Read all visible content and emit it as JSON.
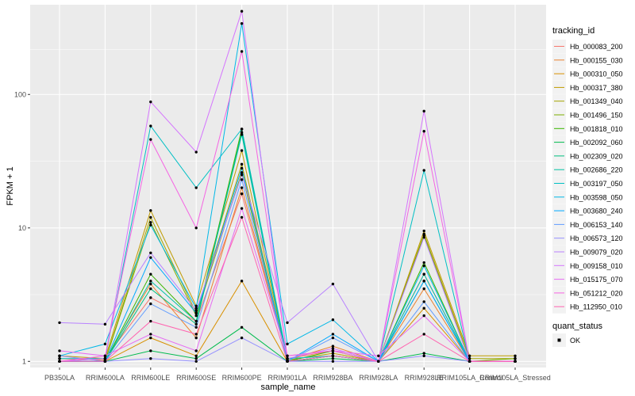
{
  "chart_data": {
    "type": "line",
    "xlabel": "sample_name",
    "ylabel": "FPKM + 1",
    "y_scale": "log10",
    "ylim": [
      0.9,
      470
    ],
    "y_ticks": [
      {
        "value": 1,
        "label": "1"
      },
      {
        "value": 10,
        "label": "10"
      },
      {
        "value": 100,
        "label": "100"
      }
    ],
    "categories": [
      "PB350LA",
      "RRIM600LA",
      "RRIM600LE",
      "RRIM600SE",
      "RRIM600PE",
      "RRIM901LA",
      "RRIM928BA",
      "RRIM928LA",
      "RRIM928LE",
      "RRIM105LA_Control",
      "RRIM105LA_Stressed"
    ],
    "grid": true,
    "background": "#EBEBEB",
    "legend": {
      "title": "tracking_id",
      "placement": "right",
      "shape_title": "quant_status",
      "shape_entries": [
        "OK"
      ]
    },
    "series": [
      {
        "name": "Hb_000083_200",
        "color": "#F8766D",
        "values": [
          1.0,
          1.05,
          3.0,
          2.0,
          18,
          1.05,
          1.2,
          1.0,
          4.5,
          1.0,
          1.0
        ]
      },
      {
        "name": "Hb_000155_030",
        "color": "#EA8331",
        "values": [
          1.05,
          1.02,
          3.8,
          1.5,
          20,
          1.02,
          1.3,
          1.0,
          3.5,
          1.0,
          1.0
        ]
      },
      {
        "name": "Hb_000310_050",
        "color": "#D89000",
        "values": [
          1.0,
          1.0,
          1.5,
          1.1,
          4.0,
          1.0,
          1.1,
          1.0,
          2.5,
          1.0,
          1.0
        ]
      },
      {
        "name": "Hb_000317_380",
        "color": "#C09B00",
        "values": [
          1.1,
          1.05,
          13.5,
          2.6,
          38,
          1.02,
          1.15,
          1.0,
          9.5,
          1.1,
          1.1
        ]
      },
      {
        "name": "Hb_001349_040",
        "color": "#A3A500",
        "values": [
          1.0,
          1.0,
          12.0,
          2.3,
          30,
          1.0,
          1.1,
          1.0,
          9.0,
          1.05,
          1.05
        ]
      },
      {
        "name": "Hb_001496_150",
        "color": "#7CAE00",
        "values": [
          1.0,
          1.0,
          11.0,
          2.2,
          26,
          1.0,
          1.1,
          1.0,
          8.8,
          1.0,
          1.05
        ]
      },
      {
        "name": "Hb_001818_010",
        "color": "#39B600",
        "values": [
          1.0,
          1.0,
          4.5,
          2.0,
          55,
          1.0,
          1.2,
          1.0,
          5.5,
          1.0,
          1.0
        ]
      },
      {
        "name": "Hb_002092_060",
        "color": "#00BB4E",
        "values": [
          1.0,
          1.0,
          1.2,
          1.05,
          1.8,
          1.0,
          1.05,
          1.0,
          1.15,
          1.0,
          1.0
        ]
      },
      {
        "name": "Hb_002309_020",
        "color": "#00BF7D",
        "values": [
          1.0,
          1.0,
          3.5,
          1.9,
          52,
          1.0,
          1.1,
          1.0,
          4.0,
          1.0,
          1.0
        ]
      },
      {
        "name": "Hb_002686_220",
        "color": "#00C1A3",
        "values": [
          1.0,
          1.0,
          4.0,
          2.0,
          50,
          1.0,
          1.1,
          1.0,
          4.5,
          1.0,
          1.0
        ]
      },
      {
        "name": "Hb_003197_050",
        "color": "#00BFC4",
        "values": [
          1.05,
          1.05,
          58,
          20,
          55,
          1.05,
          1.1,
          1.0,
          27,
          1.0,
          1.0
        ]
      },
      {
        "name": "Hb_003598_050",
        "color": "#00B8E7",
        "values": [
          1.1,
          1.35,
          10.5,
          2.5,
          340,
          1.35,
          2.05,
          1.0,
          5.2,
          1.0,
          1.0
        ]
      },
      {
        "name": "Hb_003680_240",
        "color": "#00A9FF",
        "values": [
          1.0,
          1.0,
          6.0,
          2.3,
          28,
          1.0,
          1.6,
          1.0,
          4.0,
          1.0,
          1.0
        ]
      },
      {
        "name": "Hb_006153_140",
        "color": "#619CFF",
        "values": [
          1.0,
          1.0,
          2.7,
          1.8,
          23,
          1.0,
          1.5,
          1.0,
          2.8,
          1.0,
          1.0
        ]
      },
      {
        "name": "Hb_006573_120",
        "color": "#9590FF",
        "values": [
          1.1,
          1.0,
          1.05,
          1.0,
          1.5,
          1.0,
          1.0,
          1.0,
          1.1,
          1.0,
          1.0
        ]
      },
      {
        "name": "Hb_009079_020",
        "color": "#B983FF",
        "values": [
          1.95,
          1.9,
          6.5,
          2.4,
          25,
          1.95,
          3.8,
          1.0,
          8.5,
          1.0,
          1.0
        ]
      },
      {
        "name": "Hb_009158_010",
        "color": "#D575FE",
        "values": [
          1.0,
          1.05,
          88,
          37,
          420,
          1.05,
          1.25,
          1.0,
          75,
          1.0,
          1.0
        ]
      },
      {
        "name": "Hb_015175_070",
        "color": "#E76BF3",
        "values": [
          1.2,
          1.1,
          1.6,
          1.2,
          14,
          1.1,
          1.2,
          1.1,
          2.2,
          1.0,
          1.0
        ]
      },
      {
        "name": "Hb_051212_020",
        "color": "#F564E3",
        "values": [
          1.0,
          1.1,
          46,
          10,
          210,
          1.1,
          1.2,
          1.0,
          53,
          1.0,
          1.0
        ]
      },
      {
        "name": "Hb_112950_010",
        "color": "#FF64B0",
        "values": [
          1.0,
          1.0,
          2.0,
          1.6,
          12,
          1.0,
          1.1,
          1.0,
          1.6,
          1.0,
          1.0
        ]
      }
    ]
  }
}
